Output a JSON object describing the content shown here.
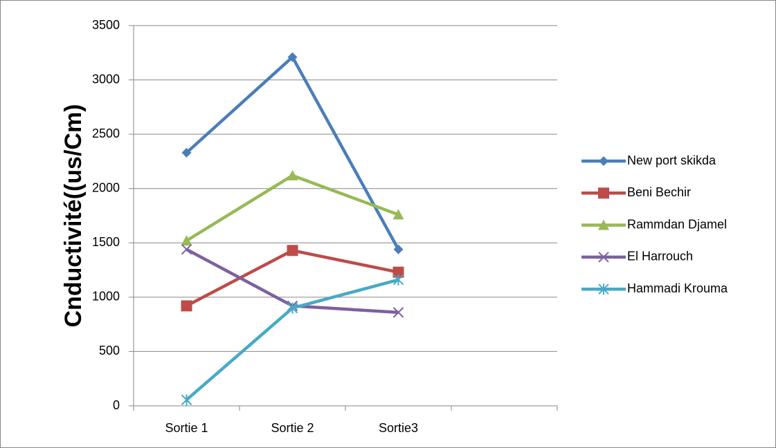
{
  "chart_data": {
    "type": "line",
    "y_label": "Cnductivité((us/Cm)",
    "categories": [
      "Sortie 1",
      "Sortie 2",
      "Sortie3",
      null
    ],
    "series": [
      {
        "name": "New port skikda",
        "color": "#4a7ebb",
        "marker": "diamond",
        "values": [
          2330,
          3210,
          1440,
          null
        ]
      },
      {
        "name": "Beni Bechir",
        "color": "#be4b48",
        "marker": "square",
        "values": [
          920,
          1430,
          1230,
          null
        ]
      },
      {
        "name": "Rammdan Djamel",
        "color": "#98b954",
        "marker": "triangle",
        "values": [
          1520,
          2120,
          1760,
          null
        ]
      },
      {
        "name": "El Harrouch",
        "color": "#7d60a0",
        "marker": "x",
        "values": [
          1440,
          920,
          860,
          null
        ]
      },
      {
        "name": "Hammadi Krouma",
        "color": "#46aac5",
        "marker": "star",
        "values": [
          55,
          900,
          1160,
          null
        ]
      }
    ],
    "ylim": [
      0,
      3500
    ],
    "yticks": [
      0,
      500,
      1000,
      1500,
      2000,
      2500,
      3000,
      3500
    ],
    "grid": true,
    "legend": "right"
  }
}
